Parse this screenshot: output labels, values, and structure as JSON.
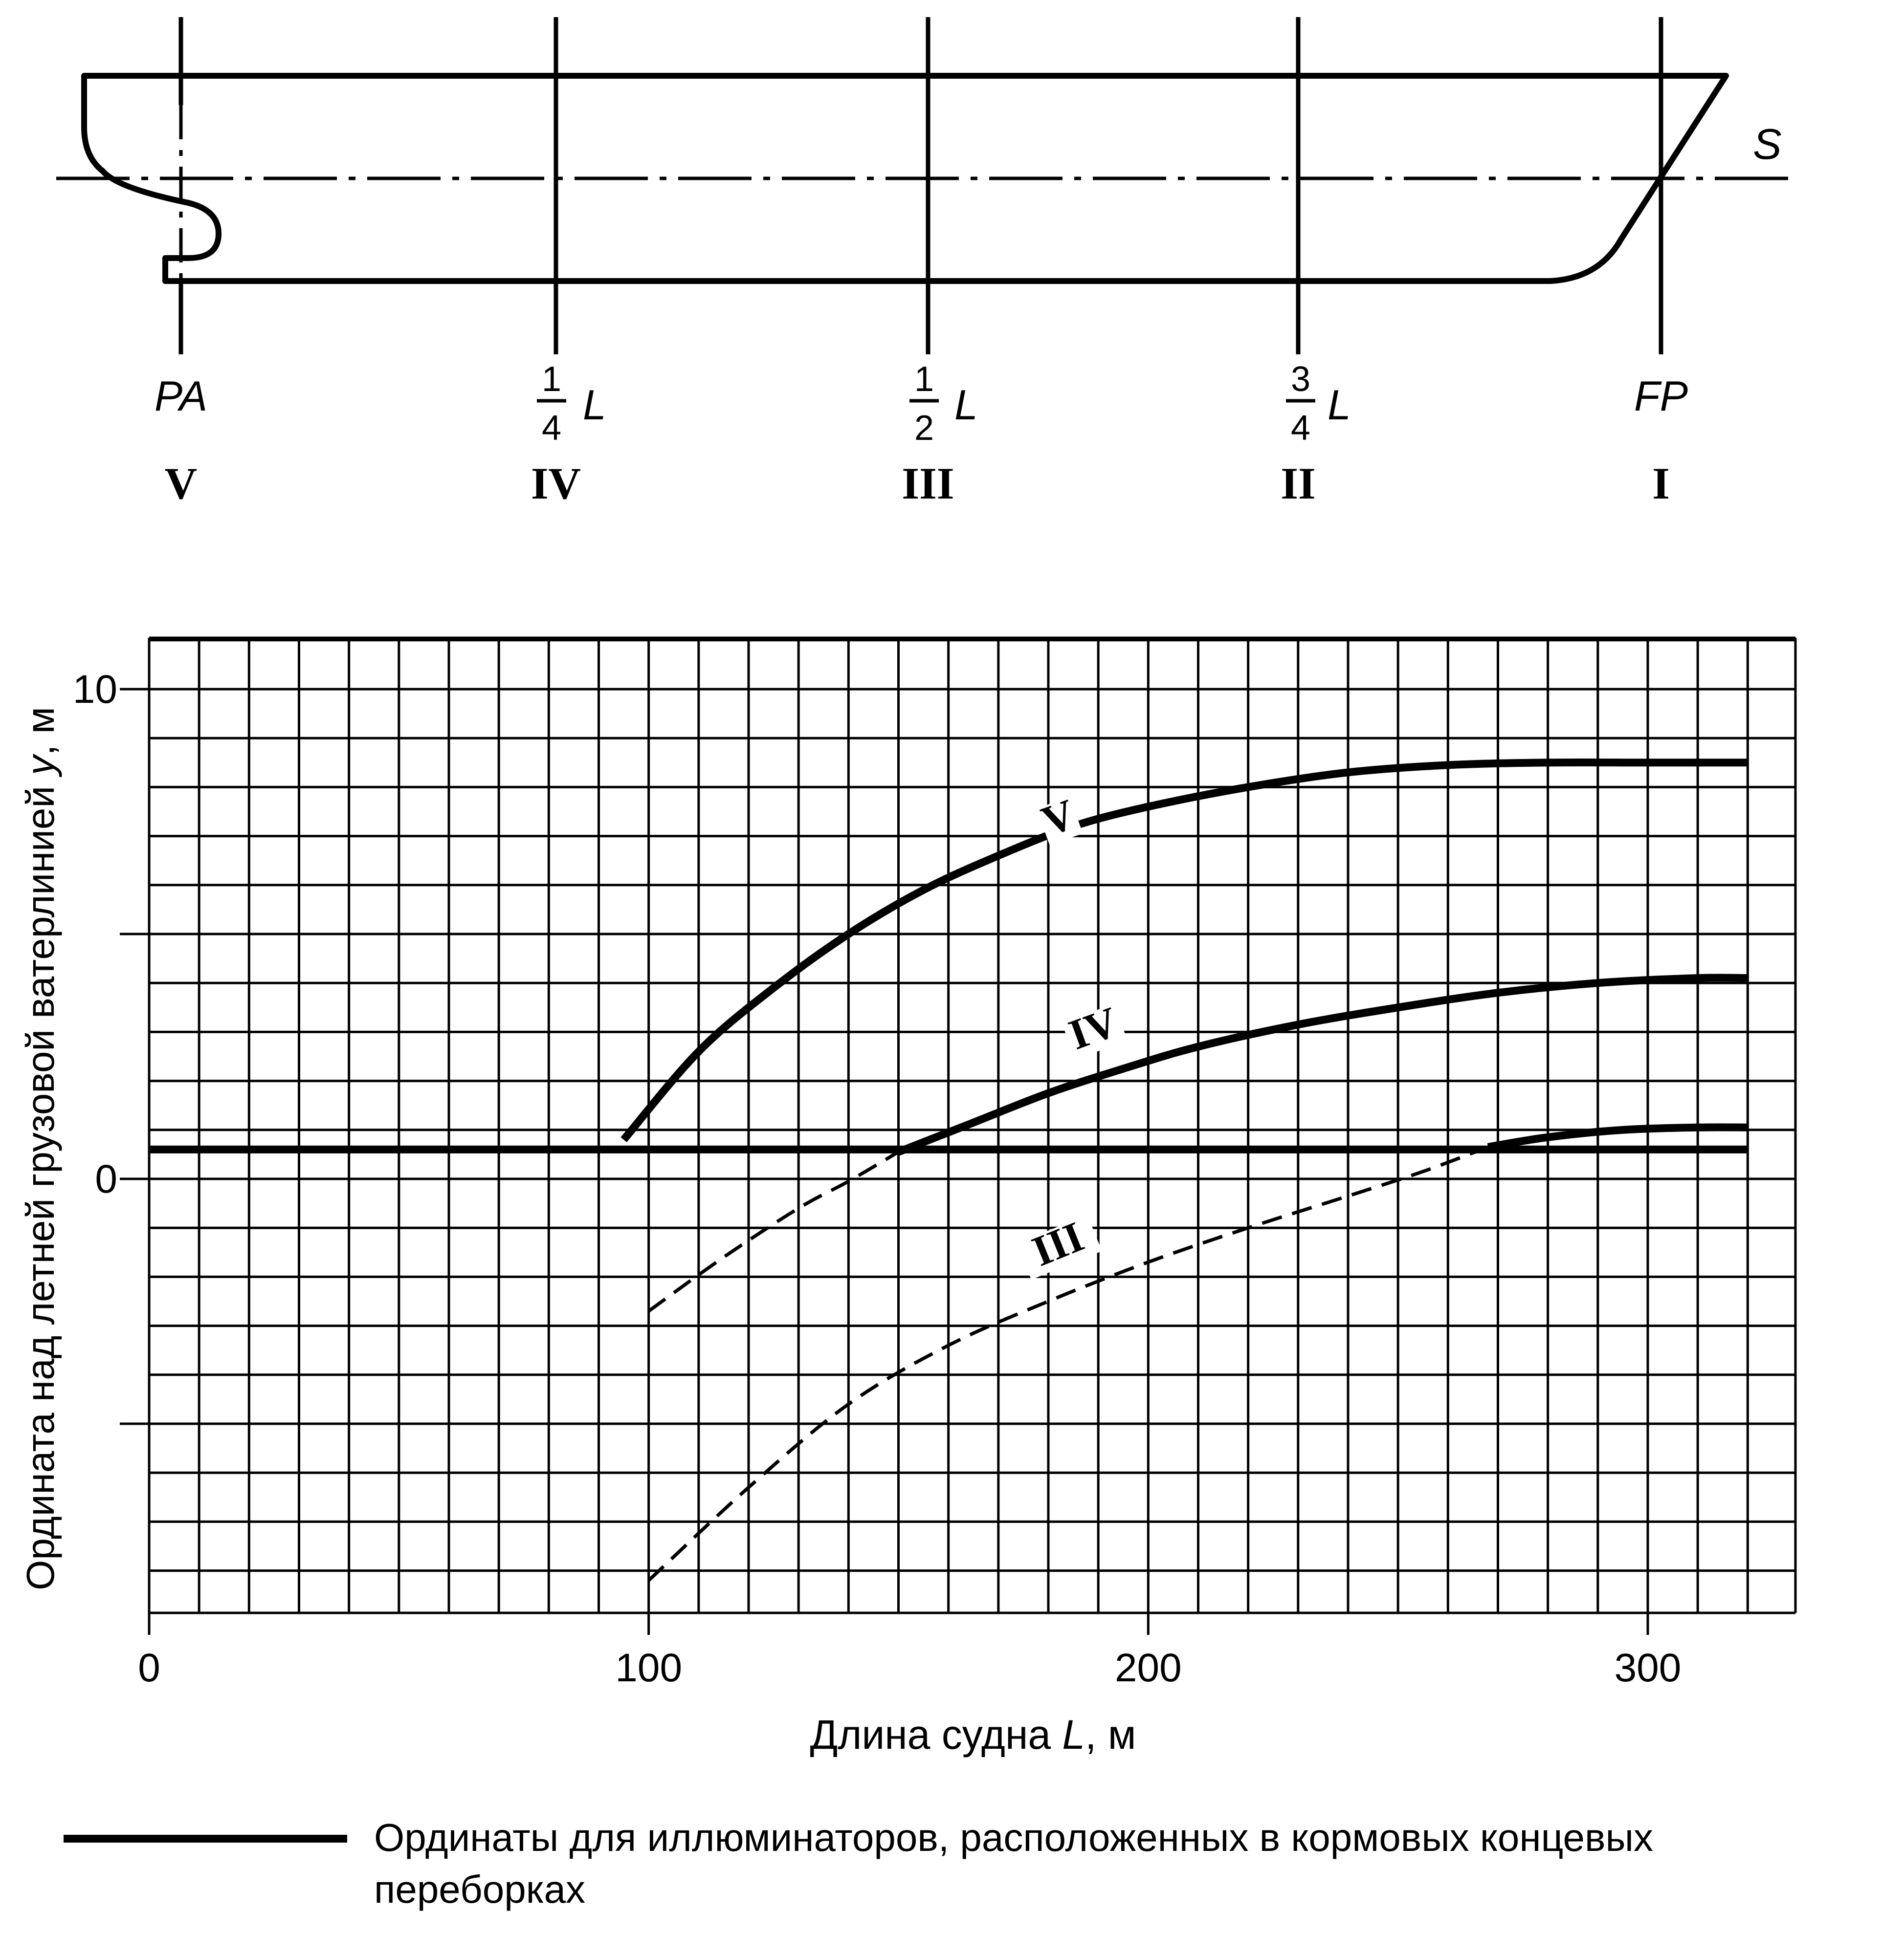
{
  "ship": {
    "waterline_label": "S",
    "stations": [
      {
        "label": "PA",
        "roman": "V"
      },
      {
        "num": "1",
        "den": "4",
        "sym": "L",
        "roman": "IV"
      },
      {
        "num": "1",
        "den": "2",
        "sym": "L",
        "roman": "III"
      },
      {
        "num": "3",
        "den": "4",
        "sym": "L",
        "roman": "II"
      },
      {
        "label": "FP",
        "roman": "I"
      }
    ]
  },
  "chart_data": {
    "type": "line",
    "xlabel": "Длина судна L, м",
    "xlabel_parts": [
      "Длина судна ",
      "L",
      ", м"
    ],
    "ylabel": "Ордината над летней грузовой ватерлинией y, м",
    "ylabel_parts": [
      "Ордината над летней грузовой ватерлинией ",
      "y",
      ", м"
    ],
    "xlim": [
      0,
      330
    ],
    "ylim": [
      -9,
      11
    ],
    "grid": true,
    "xticks": [
      0,
      100,
      200,
      300
    ],
    "yticks": [
      0,
      10
    ],
    "series": [
      {
        "name": "V",
        "style": "solid",
        "x": [
          95,
          110,
          125,
          140,
          155,
          170,
          185,
          200,
          220,
          240,
          260,
          280,
          300,
          320
        ],
        "y": [
          0.8,
          2.6,
          3.9,
          5.0,
          5.9,
          6.6,
          7.2,
          7.6,
          8.0,
          8.3,
          8.45,
          8.5,
          8.5,
          8.5
        ]
      },
      {
        "name": "IV",
        "style": "solid",
        "x": [
          150,
          165,
          180,
          195,
          210,
          230,
          250,
          270,
          290,
          310,
          320
        ],
        "y": [
          0.55,
          1.15,
          1.75,
          2.25,
          2.7,
          3.15,
          3.5,
          3.8,
          4.0,
          4.1,
          4.1
        ]
      },
      {
        "name": "IV",
        "style": "dashed",
        "x": [
          100,
          115,
          130,
          140,
          150
        ],
        "y": [
          -2.7,
          -1.6,
          -0.6,
          -0.05,
          0.55
        ]
      },
      {
        "name": "",
        "style": "solid",
        "x": [
          0,
          320
        ],
        "y": [
          0.6,
          0.6
        ]
      },
      {
        "name": "III",
        "style": "solid",
        "x": [
          268,
          280,
          295,
          310,
          320
        ],
        "y": [
          0.65,
          0.85,
          1.0,
          1.05,
          1.05
        ]
      },
      {
        "name": "III",
        "style": "dashed",
        "x": [
          100,
          120,
          140,
          160,
          180,
          200,
          220,
          240,
          255,
          268
        ],
        "y": [
          -8.2,
          -6.3,
          -4.6,
          -3.4,
          -2.5,
          -1.7,
          -1.0,
          -0.35,
          0.15,
          0.65
        ]
      }
    ],
    "series_labels": [
      {
        "text": "V",
        "x": 183,
        "y": 7.1,
        "rotate": -20
      },
      {
        "text": "IV",
        "x": 190,
        "y": 2.8,
        "rotate": -20
      },
      {
        "text": "III",
        "x": 183,
        "y": -1.6,
        "rotate": -22
      }
    ]
  },
  "legend": {
    "text_line1": "Ординаты для иллюминаторов, расположенных в кормовых концевых",
    "text_line2": "переборках"
  }
}
